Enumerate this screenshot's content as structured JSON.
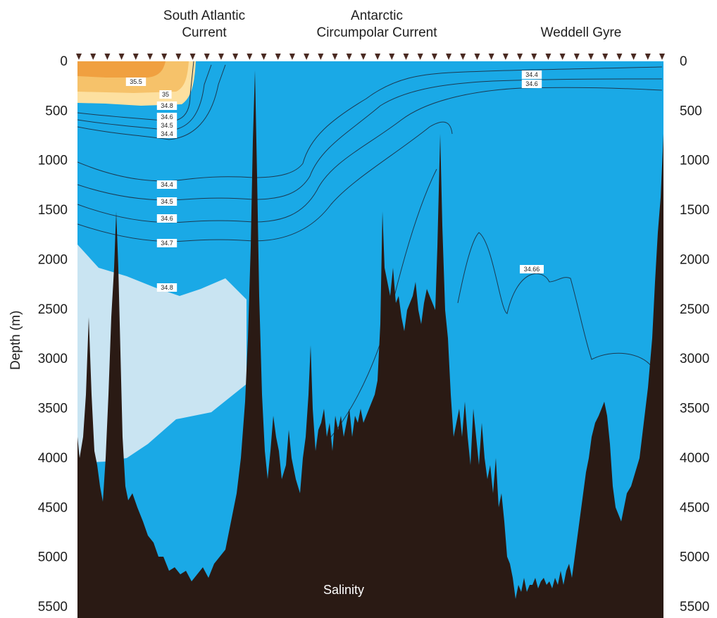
{
  "chart_data": {
    "type": "contour",
    "title": "",
    "annotation": "Salinity",
    "ylabel": "Depth (m)",
    "ylim": [
      0,
      5500
    ],
    "y_inverted": true,
    "yticks": [
      "0",
      "500",
      "1000",
      "1500",
      "2000",
      "2500",
      "3000",
      "3500",
      "4000",
      "4500",
      "5000",
      "5500"
    ],
    "yticks_values": [
      0,
      500,
      1000,
      1500,
      2000,
      2500,
      3000,
      3500,
      4000,
      4500,
      5000,
      5500
    ],
    "region_labels": [
      {
        "lines": [
          "South Atlantic",
          "Current"
        ]
      },
      {
        "lines": [
          "Antarctic",
          "Circumpolar Current"
        ]
      },
      {
        "lines": [
          "Weddell Gyre"
        ]
      }
    ],
    "contour_labels": [
      "35.5",
      "35",
      "34.8",
      "34.6",
      "34.5",
      "34.4",
      "34.4",
      "34.5",
      "34.6",
      "34.7",
      "34.8",
      "34.66",
      "34.4",
      "34.6"
    ],
    "colors": {
      "water": "#1aa9e6",
      "seafloor": "#2a1a14",
      "high_salinity_core": "#f0a040",
      "high_salinity_mid": "#f6c26a",
      "high_salinity_outer": "#fde0a0",
      "deep_water_34_8": "#c9e4f2",
      "contour_line": "#1b3a52",
      "station_marker": "#4a2a22"
    },
    "station_markers": 42
  }
}
